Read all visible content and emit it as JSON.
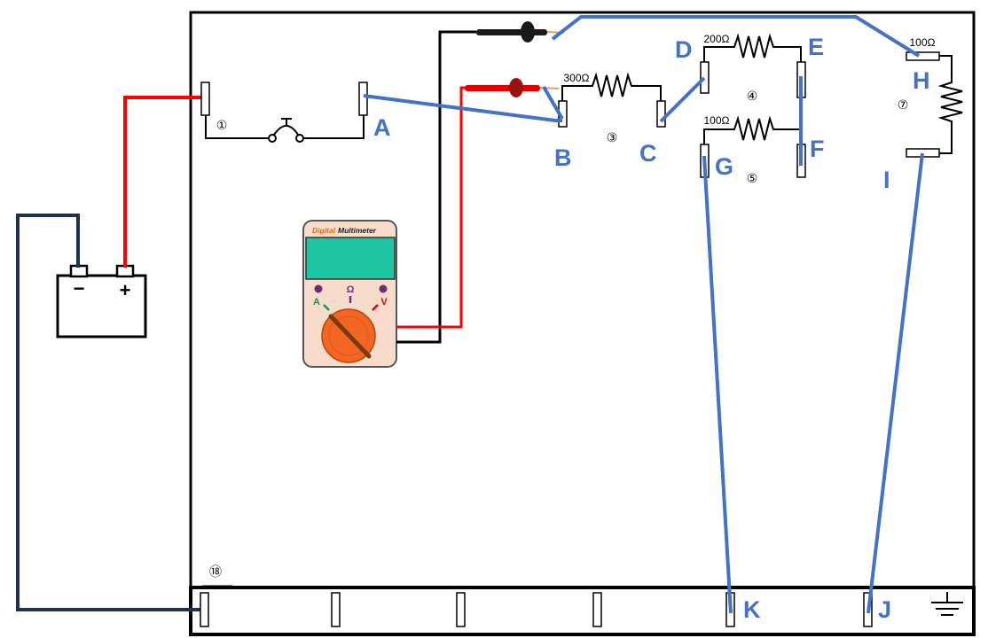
{
  "terminals": {
    "A": "A",
    "B": "B",
    "C": "C",
    "D": "D",
    "E": "E",
    "F": "F",
    "G": "G",
    "H": "H",
    "I": "I",
    "J": "J",
    "K": "K"
  },
  "resistors": {
    "r3": "300Ω",
    "r4": "200Ω",
    "r5": "100Ω",
    "r7": "100Ω"
  },
  "components": {
    "n1": "①",
    "n3": "③",
    "n4": "④",
    "n5": "⑤",
    "n7": "⑦",
    "n18": "⑱"
  },
  "multimeter": {
    "brand_word1": "Digital",
    "brand_word2": "Multimeter",
    "mode_a": "A",
    "mode_ohm": "Ω",
    "mode_v": "V"
  },
  "battery": {
    "minus": "−",
    "plus": "+"
  },
  "colors": {
    "blue_wire": "#4472c4",
    "red_wire": "#ff0000",
    "battery_wire": "#1f3150",
    "meter_body": "#f8dccb",
    "meter_screen": "#1dc5a0",
    "dial": "#f26522"
  }
}
